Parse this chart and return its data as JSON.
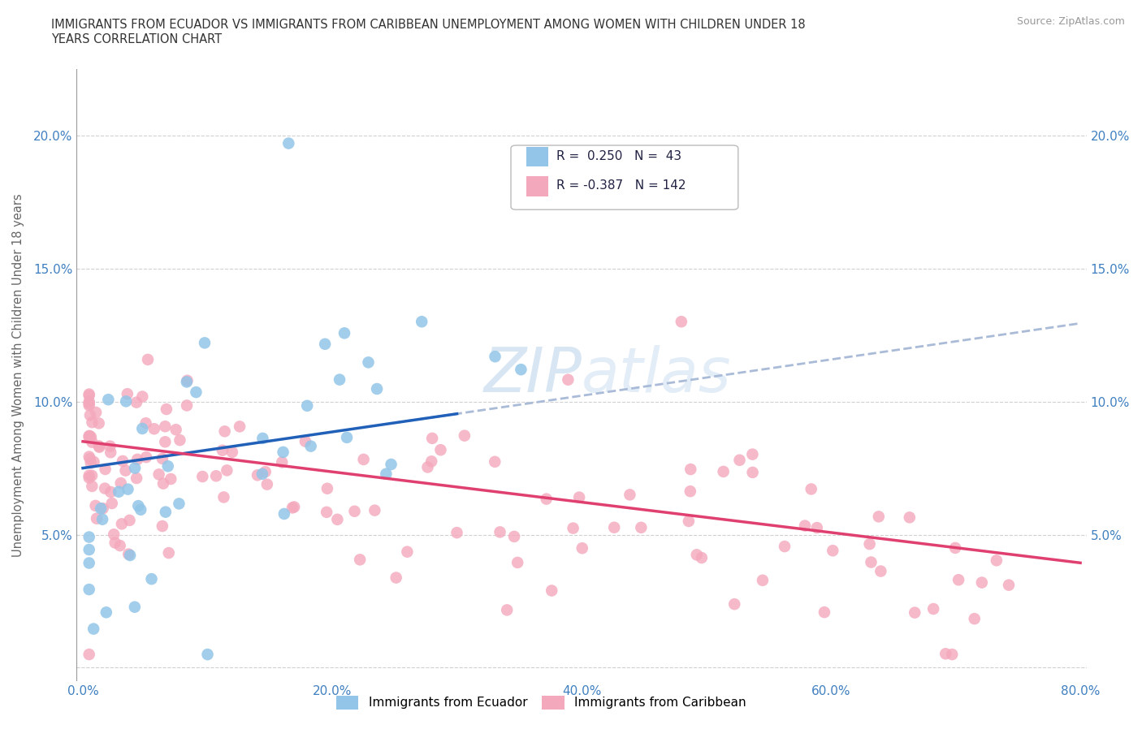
{
  "title": "IMMIGRANTS FROM ECUADOR VS IMMIGRANTS FROM CARIBBEAN UNEMPLOYMENT AMONG WOMEN WITH CHILDREN UNDER 18\nYEARS CORRELATION CHART",
  "source": "Source: ZipAtlas.com",
  "ylabel": "Unemployment Among Women with Children Under 18 years",
  "xlim": [
    0.0,
    0.8
  ],
  "ylim": [
    0.0,
    0.22
  ],
  "xticks": [
    0.0,
    0.2,
    0.4,
    0.6,
    0.8
  ],
  "yticks": [
    0.0,
    0.05,
    0.1,
    0.15,
    0.2
  ],
  "ytick_labels": [
    "",
    "5.0%",
    "10.0%",
    "15.0%",
    "20.0%"
  ],
  "xtick_labels": [
    "0.0%",
    "20.0%",
    "40.0%",
    "60.0%",
    "80.0%"
  ],
  "ecuador_R": 0.25,
  "ecuador_N": 43,
  "caribbean_R": -0.387,
  "caribbean_N": 142,
  "ecuador_color": "#92C5E8",
  "caribbean_color": "#F4A8BC",
  "ecuador_line_color": "#2060B8",
  "caribbean_line_color": "#E04070",
  "dash_color": "#AABBD8",
  "watermark_color": "#C8DCF0",
  "background_color": "#ffffff",
  "grid_color": "#D0D0D0",
  "tick_color": "#4080C0",
  "title_color": "#333333",
  "source_color": "#999999",
  "ylabel_color": "#666666"
}
